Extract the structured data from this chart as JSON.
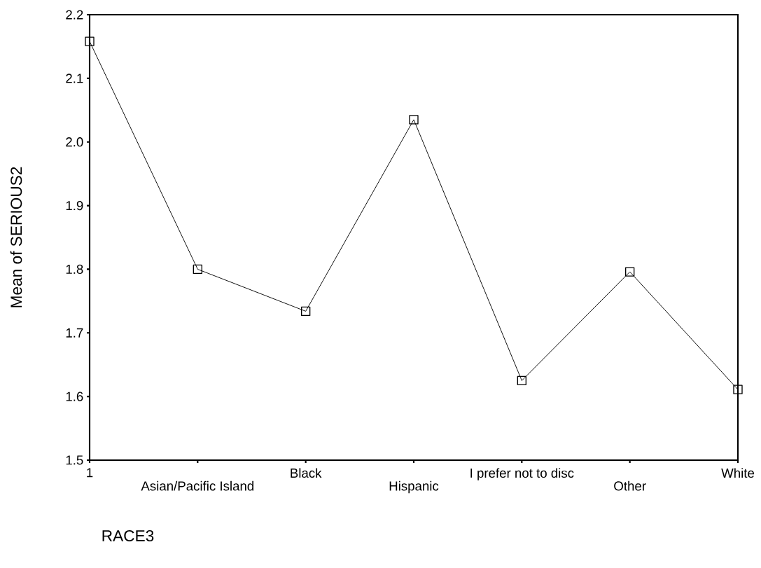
{
  "chart_data": {
    "type": "line",
    "categories": [
      "1",
      "Asian/Pacific Island",
      "Black",
      "Hispanic",
      "I prefer not to disc",
      "Other",
      "White"
    ],
    "values": [
      2.158,
      1.8,
      1.734,
      2.035,
      1.625,
      1.796,
      1.611
    ],
    "color": "#000000",
    "xlabel": "RACE3",
    "ylabel": "Mean of SERIOUS2",
    "ylim": [
      1.5,
      2.2
    ],
    "yticks": [
      {
        "value": 1.5,
        "label": "1.5"
      },
      {
        "value": 1.6,
        "label": "1.6"
      },
      {
        "value": 1.7,
        "label": "1.7"
      },
      {
        "value": 1.8,
        "label": "1.8"
      },
      {
        "value": 1.9,
        "label": "1.9"
      },
      {
        "value": 2.0,
        "label": "2.0"
      },
      {
        "value": 2.1,
        "label": "2.1"
      },
      {
        "value": 2.2,
        "label": "2.2"
      }
    ],
    "marker": "square",
    "line_style": "solid"
  }
}
